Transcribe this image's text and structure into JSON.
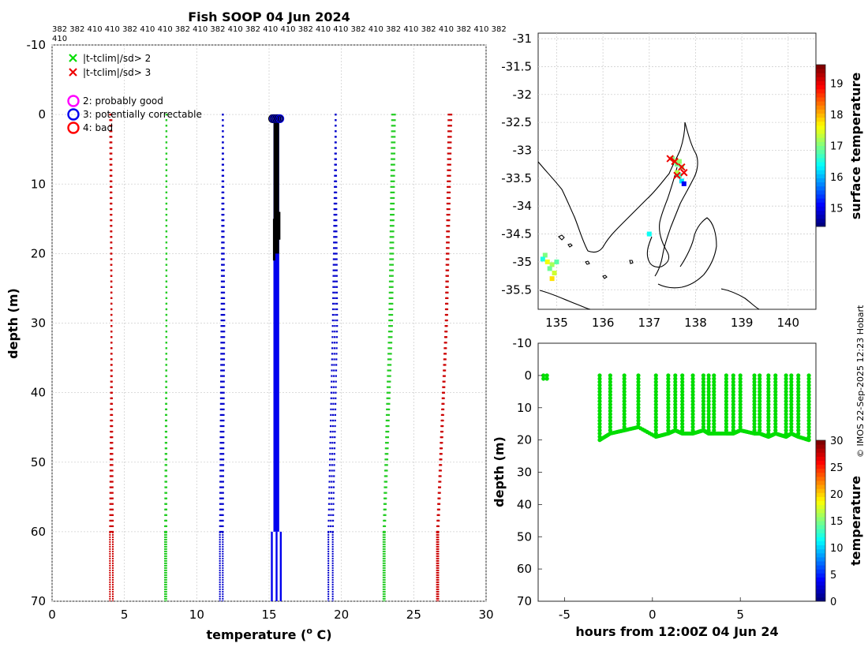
{
  "page": {
    "title": "Fish SOOP 04 Jun 2024",
    "platform_codes": "382 382 410 410 382 410 410 382 410 382 410 382 410 410 382 410 410 382 410 382 410 382 410 382 410 382",
    "platform_codes_extra": "410",
    "credit": "© IMOS 22-Sep-2025 12:23 Hobart"
  },
  "chart_data": [
    {
      "type": "scatter",
      "name": "profile-plot",
      "xlabel": "temperature (o C)",
      "xlabel_main": "temperature (",
      "xlabel_sup": "o",
      "xlabel_tail": " C)",
      "ylabel": "depth (m)",
      "xlim": [
        0,
        30
      ],
      "ylim": [
        -10,
        70
      ],
      "y_reversed": true,
      "grid": true,
      "xticks": [
        "0",
        "5",
        "10",
        "15",
        "20",
        "25",
        "30"
      ],
      "yticks": [
        "-10",
        "0",
        "10",
        "20",
        "30",
        "40",
        "50",
        "60",
        "70"
      ],
      "legend": {
        "placement": "top-left",
        "entries": [
          {
            "marker": "x",
            "color": "#00dd00",
            "label": "|t-tclim|/sd> 2"
          },
          {
            "marker": "x",
            "color": "#ee0000",
            "label": "|t-tclim|/sd> 3"
          },
          {
            "marker": "o",
            "color": "#ff00ff",
            "label": "2: probably good"
          },
          {
            "marker": "o",
            "color": "#0000ee",
            "label": "3: potentially correctable"
          },
          {
            "marker": "o",
            "color": "#ff0000",
            "label": "4: bad"
          }
        ]
      },
      "clim_envelopes": [
        {
          "name": "clim-minus-3sd",
          "color": "#cc0000",
          "top": [
            4.2,
            4.1,
            4.1
          ],
          "bottom": [
            4.0,
            4.1,
            4.0
          ]
        },
        {
          "name": "clim-minus-2sd",
          "color": "#22cc22",
          "top": [
            7.9,
            7.9,
            7.9
          ],
          "bottom": [
            7.8,
            7.9,
            7.9
          ]
        },
        {
          "name": "clim-minus-1sd",
          "color": "#0000cc",
          "top": [
            11.8,
            11.9,
            11.8
          ],
          "bottom": [
            11.6,
            11.7,
            11.8
          ]
        },
        {
          "name": "clim-plus-1sd",
          "color": "#0000cc",
          "top": [
            19.4,
            19.7,
            19.6
          ],
          "bottom": [
            19.1,
            19.4,
            19.6
          ]
        },
        {
          "name": "clim-plus-2sd",
          "color": "#22cc22",
          "top": [
            23.0,
            23.5,
            23.7
          ],
          "bottom": [
            22.9,
            23.3,
            23.5
          ]
        },
        {
          "name": "clim-plus-3sd",
          "color": "#cc0000",
          "top": [
            26.7,
            27.3,
            27.6
          ],
          "bottom": [
            26.6,
            27.2,
            27.4
          ]
        }
      ],
      "observed": {
        "color": "#000000",
        "depth_range": [
          0,
          20
        ],
        "temp_range": [
          15.2,
          15.8
        ]
      },
      "flagged_3": {
        "color": "#0000ee",
        "depth_range": [
          0,
          70
        ],
        "temp_range": [
          15.3,
          15.7
        ]
      }
    },
    {
      "type": "map",
      "name": "location-map",
      "xlim": [
        134.6,
        140.6
      ],
      "ylim": [
        -35.85,
        -30.9
      ],
      "xticks": [
        "135",
        "136",
        "137",
        "138",
        "139",
        "140"
      ],
      "yticks": [
        "-31",
        "-31.5",
        "-32",
        "-32.5",
        "-33",
        "-33.5",
        "-34",
        "-34.5",
        "-35",
        "-35.5"
      ],
      "grid": true,
      "colorbar": {
        "label": "surface temperature",
        "range": [
          14.4,
          19.6
        ],
        "ticks": [
          "15",
          "16",
          "17",
          "18",
          "19"
        ]
      },
      "points": [
        {
          "lon": 137.5,
          "lat": -33.15,
          "temp": 17.0
        },
        {
          "lon": 137.55,
          "lat": -33.2,
          "temp": 17.2
        },
        {
          "lon": 137.6,
          "lat": -33.25,
          "temp": 16.9
        },
        {
          "lon": 137.65,
          "lat": -33.2,
          "temp": 17.1
        },
        {
          "lon": 137.7,
          "lat": -33.3,
          "temp": 17.0
        },
        {
          "lon": 137.6,
          "lat": -33.4,
          "temp": 17.3
        },
        {
          "lon": 137.65,
          "lat": -33.45,
          "temp": 16.7
        },
        {
          "lon": 137.7,
          "lat": -33.55,
          "temp": 16.2
        },
        {
          "lon": 137.75,
          "lat": -33.6,
          "temp": 15.0
        },
        {
          "lon": 137.0,
          "lat": -34.5,
          "temp": 16.4
        },
        {
          "lon": 134.75,
          "lat": -34.88,
          "temp": 17.0
        },
        {
          "lon": 134.7,
          "lat": -34.95,
          "temp": 16.5
        },
        {
          "lon": 134.8,
          "lat": -35.0,
          "temp": 17.6
        },
        {
          "lon": 134.9,
          "lat": -35.05,
          "temp": 17.2
        },
        {
          "lon": 134.85,
          "lat": -35.12,
          "temp": 16.9
        },
        {
          "lon": 134.95,
          "lat": -35.2,
          "temp": 17.4
        },
        {
          "lon": 134.9,
          "lat": -35.3,
          "temp": 17.8
        },
        {
          "lon": 135.0,
          "lat": -35.0,
          "temp": 16.8
        }
      ],
      "red_markers": [
        {
          "lon": 137.45,
          "lat": -33.15
        },
        {
          "lon": 137.55,
          "lat": -33.2
        },
        {
          "lon": 137.7,
          "lat": -33.3
        },
        {
          "lon": 137.6,
          "lat": -33.45
        },
        {
          "lon": 137.75,
          "lat": -33.4
        }
      ]
    },
    {
      "type": "scatter",
      "name": "time-depth-plot",
      "xlabel": "hours from 12:00Z 04 Jun 24",
      "ylabel": "depth (m)",
      "xlim": [
        -6.5,
        9.3
      ],
      "ylim": [
        -10,
        70
      ],
      "y_reversed": true,
      "grid": false,
      "xticks": [
        "-5",
        "0",
        "5"
      ],
      "yticks": [
        "-10",
        "0",
        "10",
        "20",
        "30",
        "40",
        "50",
        "60",
        "70"
      ],
      "colorbar": {
        "label": "temperature",
        "range": [
          0,
          30
        ],
        "ticks": [
          "0",
          "5",
          "10",
          "15",
          "20",
          "25",
          "30"
        ]
      },
      "marker_color": "#00dd00",
      "casts": [
        {
          "t": -6.2,
          "max_depth": 1
        },
        {
          "t": -6.0,
          "max_depth": 1
        },
        {
          "t": -3.0,
          "max_depth": 20
        },
        {
          "t": -2.4,
          "max_depth": 18
        },
        {
          "t": -1.6,
          "max_depth": 17
        },
        {
          "t": -0.8,
          "max_depth": 16
        },
        {
          "t": 0.2,
          "max_depth": 19
        },
        {
          "t": 0.9,
          "max_depth": 18
        },
        {
          "t": 1.3,
          "max_depth": 17
        },
        {
          "t": 1.7,
          "max_depth": 18
        },
        {
          "t": 2.3,
          "max_depth": 18
        },
        {
          "t": 2.9,
          "max_depth": 17
        },
        {
          "t": 3.2,
          "max_depth": 18
        },
        {
          "t": 3.5,
          "max_depth": 18
        },
        {
          "t": 4.2,
          "max_depth": 18
        },
        {
          "t": 4.6,
          "max_depth": 18
        },
        {
          "t": 5.0,
          "max_depth": 17
        },
        {
          "t": 5.8,
          "max_depth": 18
        },
        {
          "t": 6.1,
          "max_depth": 18
        },
        {
          "t": 6.6,
          "max_depth": 19
        },
        {
          "t": 7.0,
          "max_depth": 18
        },
        {
          "t": 7.6,
          "max_depth": 19
        },
        {
          "t": 7.9,
          "max_depth": 18
        },
        {
          "t": 8.3,
          "max_depth": 19
        },
        {
          "t": 8.9,
          "max_depth": 20
        }
      ]
    }
  ]
}
